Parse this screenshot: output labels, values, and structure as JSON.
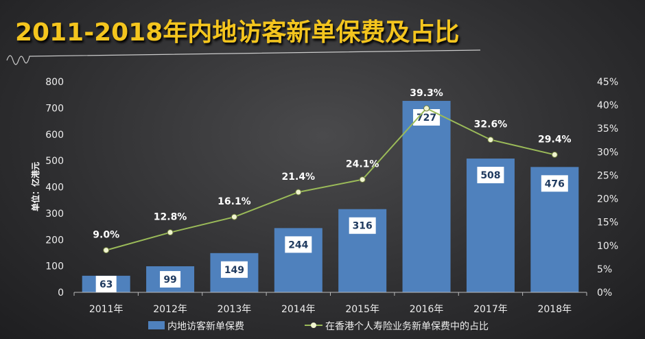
{
  "title": "2011-2018年内地访客新单保费及占比",
  "chart_data": {
    "type": "bar+line",
    "title": "2011-2018年内地访客新单保费及占比",
    "categories": [
      "2011年",
      "2012年",
      "2013年",
      "2014年",
      "2015年",
      "2016年",
      "2017年",
      "2018年"
    ],
    "ylabel": "单位：亿港元",
    "ylim": [
      0,
      800
    ],
    "yticks": [
      "0",
      "100",
      "200",
      "300",
      "400",
      "500",
      "600",
      "700",
      "800"
    ],
    "y2lim": [
      0,
      45
    ],
    "y2ticks": [
      "0%",
      "5%",
      "10%",
      "15%",
      "20%",
      "25%",
      "30%",
      "35%",
      "40%",
      "45%"
    ],
    "grid": false,
    "legend": "bottom",
    "series": [
      {
        "name": "内地访客新单保费",
        "type": "bar",
        "values": [
          63,
          99,
          149,
          244,
          316,
          727,
          508,
          476
        ],
        "labels": [
          "63",
          "99",
          "149",
          "244",
          "316",
          "727",
          "508",
          "476"
        ],
        "color": "#4f81bd"
      },
      {
        "name": "在香港个人寿险业务新单保费中的占比",
        "type": "line",
        "axis": "right",
        "values": [
          9.0,
          12.8,
          16.1,
          21.4,
          24.1,
          39.3,
          32.6,
          29.4
        ],
        "labels": [
          "9.0%",
          "12.8%",
          "16.1%",
          "21.4%",
          "24.1%",
          "39.3%",
          "32.6%",
          "29.4%"
        ],
        "color": "#9bbb59"
      }
    ]
  }
}
